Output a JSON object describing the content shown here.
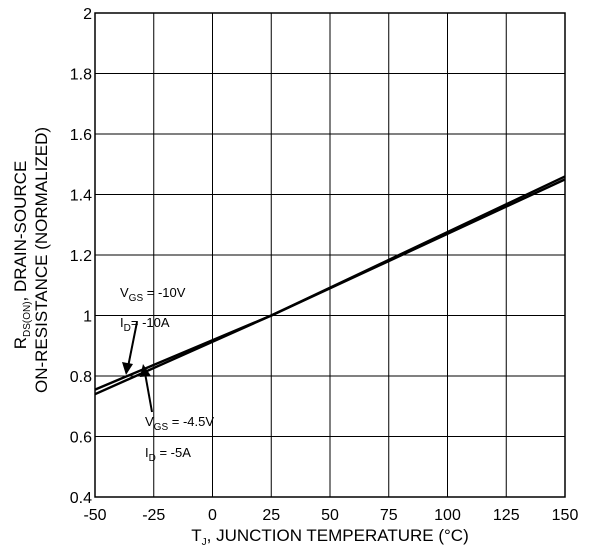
{
  "chart_data": {
    "type": "line",
    "xlabel": {
      "main": "T",
      "sub": "J",
      "rest": ", JUNCTION TEMPERATURE (°C)"
    },
    "ylabel": {
      "line1": {
        "main": "R",
        "sub": "DS(ON)",
        "rest": ", DRAIN-SOURCE"
      },
      "line2": "ON-RESISTANCE  (NORMALIZED)"
    },
    "xlim": [
      -50,
      150
    ],
    "ylim": [
      0.4,
      2
    ],
    "xticks": [
      -50,
      -25,
      0,
      25,
      50,
      75,
      100,
      125,
      150
    ],
    "yticks": [
      "0.4",
      "0.6",
      "0.8",
      "1",
      "1.2",
      "1.4",
      "1.6",
      "1.8",
      "2"
    ],
    "grid": true,
    "series": [
      {
        "x": [
          -50,
          25,
          150
        ],
        "y": [
          0.755,
          1.0,
          1.45
        ],
        "annotation": {
          "vgs_label": "V",
          "vgs_sub": "GS",
          "vgs_value": " = -10V",
          "id_label": "I",
          "id_sub": "D",
          "id_value": "= -10A"
        }
      },
      {
        "x": [
          -50,
          25,
          150
        ],
        "y": [
          0.74,
          1.0,
          1.46
        ],
        "annotation": {
          "vgs_label": "V",
          "vgs_sub": "GS",
          "vgs_value": " = -4.5V",
          "id_label": "I",
          "id_sub": "D",
          "id_value": " = -5A"
        }
      }
    ]
  }
}
